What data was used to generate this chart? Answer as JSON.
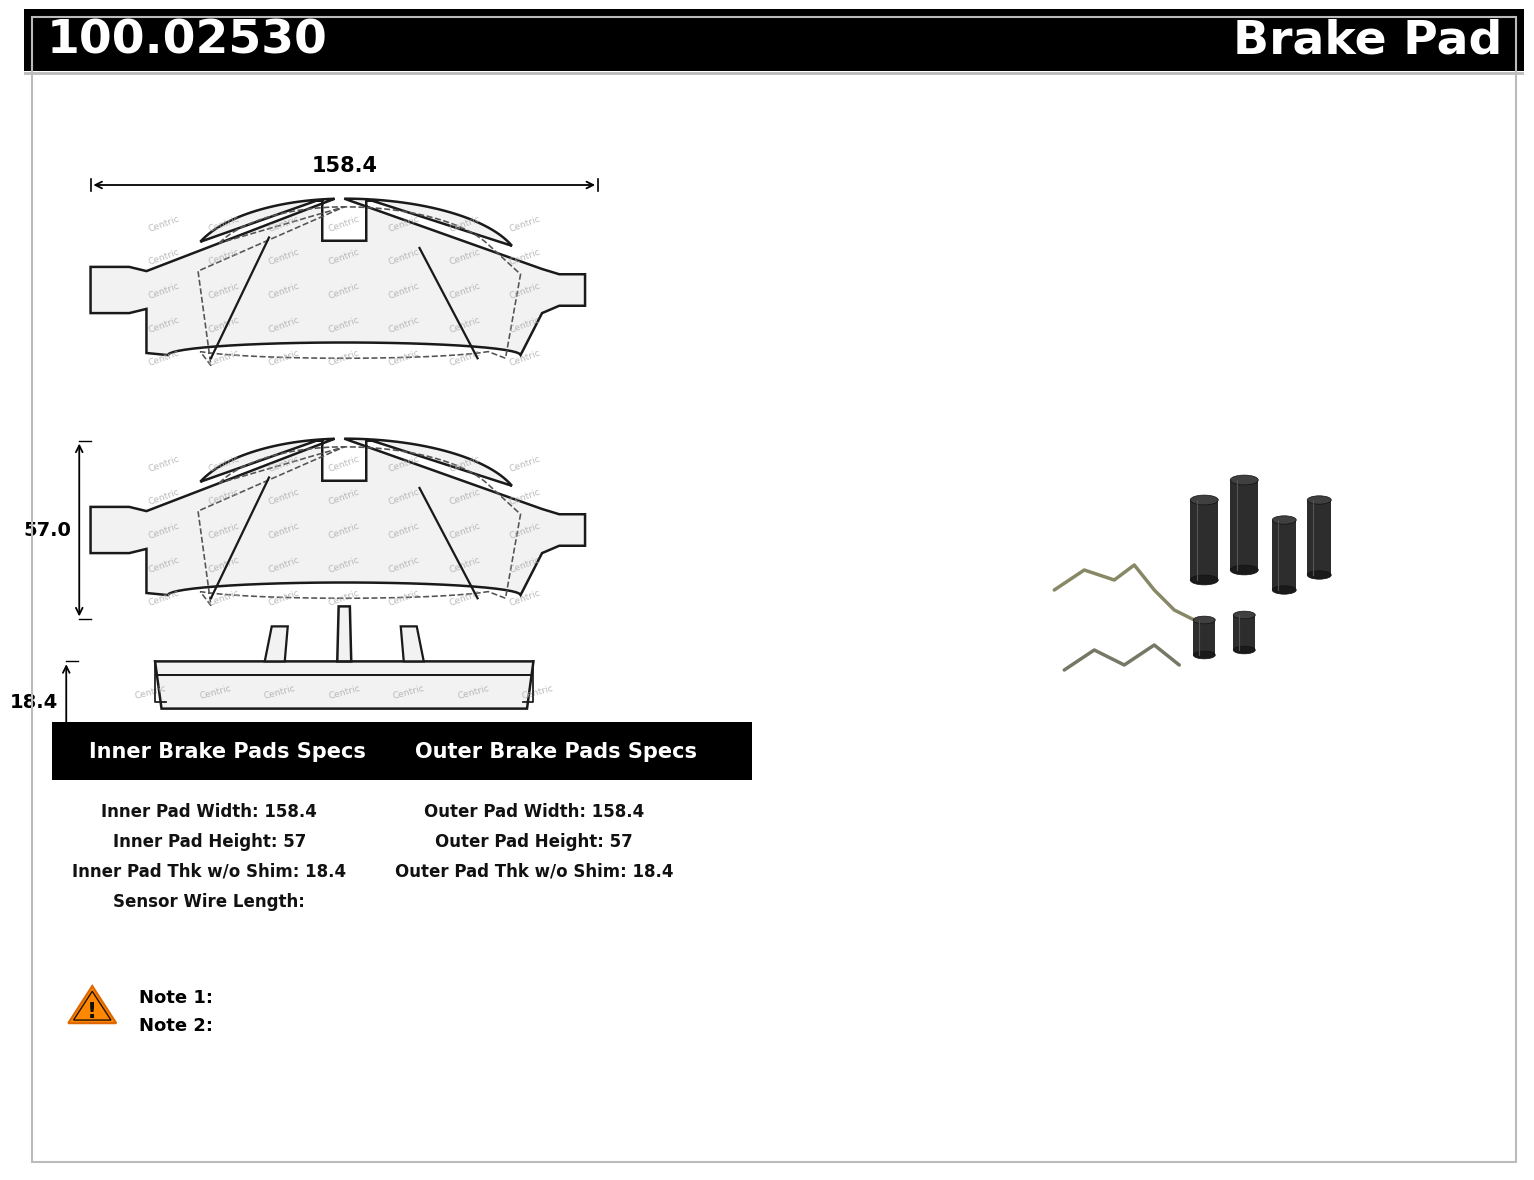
{
  "part_number": "100.02530",
  "product_type": "Brake Pad",
  "header_bg": "#000000",
  "header_text_color": "#ffffff",
  "body_bg": "#ffffff",
  "specs_header_bg": "#000000",
  "specs_header_text": "#ffffff",
  "inner_specs_title": "Inner Brake Pads Specs",
  "outer_specs_title": "Outer Brake Pads Specs",
  "inner_specs": [
    "Inner Pad Width: 158.4",
    "Inner Pad Height: 57",
    "Inner Pad Thk w/o Shim: 18.4",
    "Sensor Wire Length:"
  ],
  "outer_specs": [
    "Outer Pad Width: 158.4",
    "Outer Pad Height: 57",
    "Outer Pad Thk w/o Shim: 18.4"
  ],
  "dim_width": "158.4",
  "dim_height": "57.0",
  "dim_thickness": "18.4",
  "note1": "Note 1:",
  "note2": "Note 2:",
  "fig_width": 15.0,
  "fig_height": 11.61
}
